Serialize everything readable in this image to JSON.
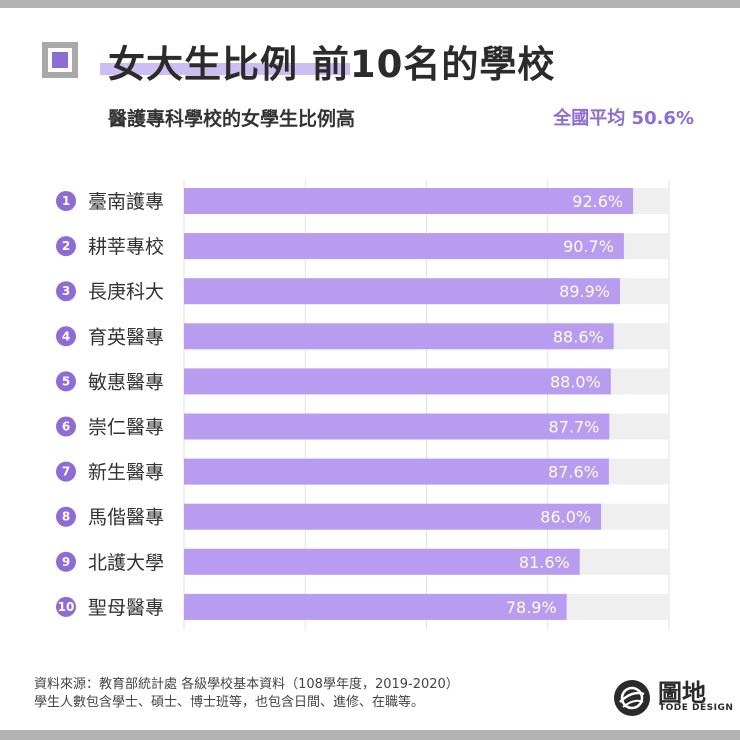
{
  "header": {
    "title": "女大生比例 前10名的學校",
    "subtitle": "醫護專科學校的女學生比例高",
    "average": "全國平均 50.6%"
  },
  "chart_data": {
    "type": "bar",
    "orientation": "horizontal",
    "categories": [
      "臺南護專",
      "耕莘專校",
      "長庚科大",
      "育英醫專",
      "敏惠醫專",
      "崇仁醫專",
      "新生醫專",
      "馬偕醫專",
      "北護大學",
      "聖母醫專"
    ],
    "ranks": [
      "1",
      "2",
      "3",
      "4",
      "5",
      "6",
      "7",
      "8",
      "9",
      "10"
    ],
    "values": [
      92.6,
      90.7,
      89.9,
      88.6,
      88.0,
      87.7,
      87.6,
      86.0,
      81.6,
      78.9
    ],
    "value_labels": [
      "92.6%",
      "90.7%",
      "89.9%",
      "88.6%",
      "88.0%",
      "87.7%",
      "87.6%",
      "86.0%",
      "81.6%",
      "78.9%"
    ],
    "xlim": [
      0,
      100
    ],
    "grid": true,
    "bar_color": "#b89cf0",
    "track_color": "#efefef",
    "rank_badge_color": "#8e6cd8"
  },
  "footer": {
    "source_line1": "資料來源：教育部統計處 各級學校基本資料（108學年度，2019-2020）",
    "source_line2": "學生人數包含學士、碩士、博士班等，也包含日間、進修、在職等。"
  },
  "brand": {
    "name": "圖地",
    "subtitle": "TODE DESIGN",
    "icon": "globe-logo-icon"
  }
}
